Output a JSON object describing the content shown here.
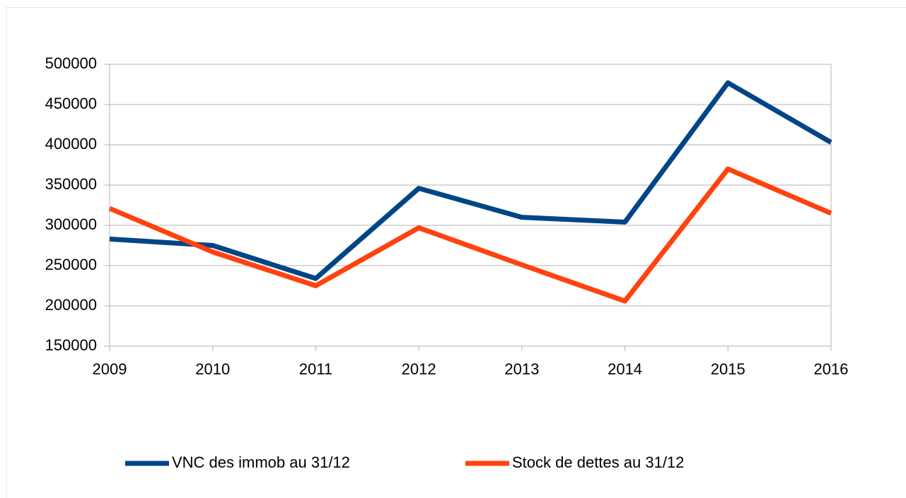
{
  "chart_data": {
    "type": "line",
    "categories": [
      "2009",
      "2010",
      "2011",
      "2012",
      "2013",
      "2014",
      "2015",
      "2016"
    ],
    "series": [
      {
        "name": "VNC des immob au 31/12",
        "color": "#004586",
        "values": [
          283000,
          275000,
          234000,
          346000,
          310000,
          304000,
          477000,
          403000
        ]
      },
      {
        "name": "Stock de dettes au 31/12",
        "color": "#ff420e",
        "values": [
          321000,
          267000,
          225000,
          297000,
          251000,
          206000,
          370000,
          315000
        ]
      }
    ],
    "ylim": [
      150000,
      500000
    ],
    "yticks": [
      150000,
      200000,
      250000,
      300000,
      350000,
      400000,
      450000,
      500000
    ],
    "grid": true,
    "legend": "bottom"
  }
}
